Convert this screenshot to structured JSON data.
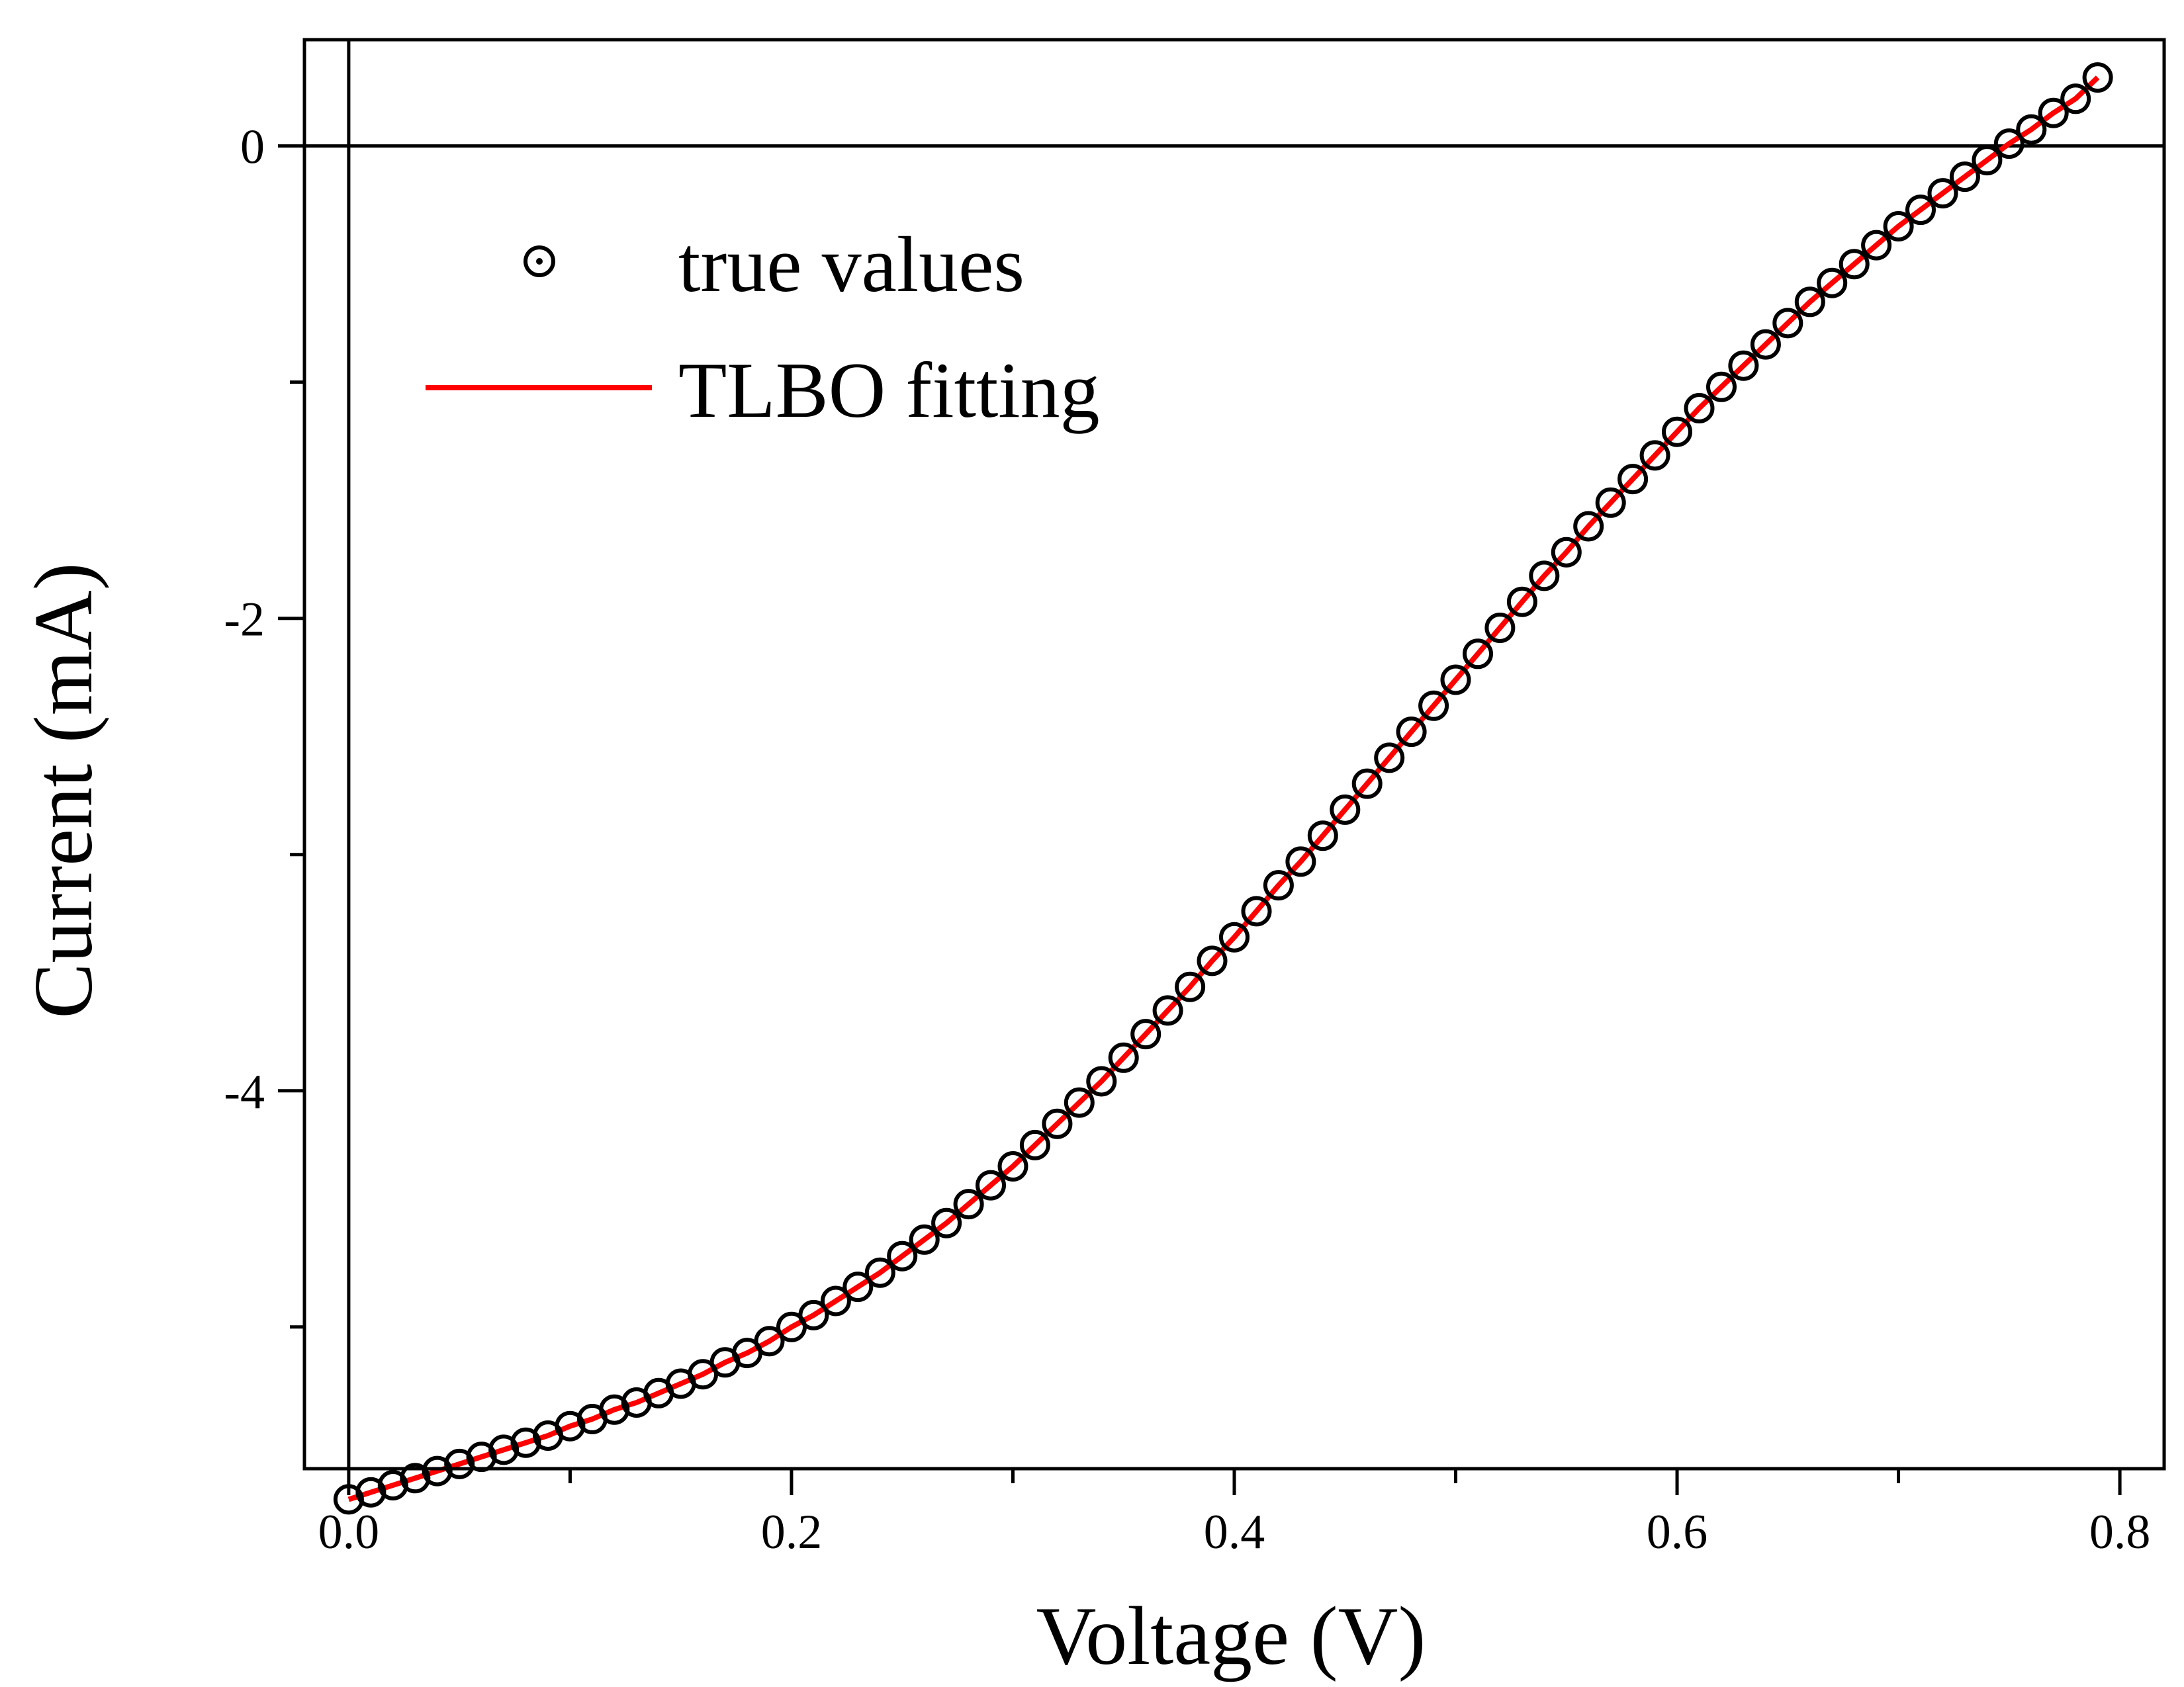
{
  "chart_data": {
    "type": "scatter",
    "title": "",
    "xlabel": "Voltage (V)",
    "ylabel": "Current (mA)",
    "xlim": [
      -0.02,
      0.82
    ],
    "ylim": [
      -5.6,
      0.45
    ],
    "x_ticks": [
      {
        "value": 0.0,
        "label": "0.0"
      },
      {
        "value": 0.2,
        "label": "0.2"
      },
      {
        "value": 0.4,
        "label": "0.4"
      },
      {
        "value": 0.6,
        "label": "0.6"
      },
      {
        "value": 0.8,
        "label": "0.8"
      }
    ],
    "x_minor_ticks": [
      0.1,
      0.3,
      0.5,
      0.7
    ],
    "y_ticks": [
      {
        "value": 0,
        "label": "0"
      },
      {
        "value": -2,
        "label": "-2"
      },
      {
        "value": -4,
        "label": "-4"
      }
    ],
    "y_minor_ticks": [
      -1,
      -3,
      -5
    ],
    "grid": false,
    "reference_lines": {
      "x": 0,
      "y": 0
    },
    "legend": {
      "position": "top-left",
      "entries": [
        {
          "label": "true values",
          "marker": "circle-dot",
          "color": "#000000"
        },
        {
          "label": "TLBO fitting",
          "marker": "line",
          "color": "#ff0000"
        }
      ]
    },
    "series": [
      {
        "name": "true values",
        "kind": "marker",
        "color": "#000000",
        "x": [
          0.0,
          0.01,
          0.02,
          0.03,
          0.04,
          0.05,
          0.06,
          0.07,
          0.08,
          0.09,
          0.1,
          0.11,
          0.12,
          0.13,
          0.14,
          0.15,
          0.16,
          0.17,
          0.18,
          0.19,
          0.2,
          0.21,
          0.22,
          0.23,
          0.24,
          0.25,
          0.26,
          0.27,
          0.28,
          0.29,
          0.3,
          0.31,
          0.32,
          0.33,
          0.34,
          0.35,
          0.36,
          0.37,
          0.38,
          0.39,
          0.4,
          0.41,
          0.42,
          0.43,
          0.44,
          0.45,
          0.46,
          0.47,
          0.48,
          0.49,
          0.5,
          0.51,
          0.52,
          0.53,
          0.54,
          0.55,
          0.56,
          0.57,
          0.58,
          0.59,
          0.6,
          0.61,
          0.62,
          0.63,
          0.64,
          0.65,
          0.66,
          0.67,
          0.68,
          0.69,
          0.7,
          0.71,
          0.72,
          0.73,
          0.74,
          0.75,
          0.76,
          0.77,
          0.78,
          0.79
        ],
        "y": [
          -5.73,
          -5.7,
          -5.67,
          -5.64,
          -5.61,
          -5.58,
          -5.55,
          -5.52,
          -5.49,
          -5.46,
          -5.42,
          -5.39,
          -5.35,
          -5.32,
          -5.28,
          -5.24,
          -5.2,
          -5.15,
          -5.11,
          -5.06,
          -5.0,
          -4.95,
          -4.89,
          -4.83,
          -4.77,
          -4.7,
          -4.63,
          -4.56,
          -4.48,
          -4.4,
          -4.32,
          -4.23,
          -4.14,
          -4.05,
          -3.96,
          -3.86,
          -3.76,
          -3.66,
          -3.56,
          -3.45,
          -3.35,
          -3.24,
          -3.13,
          -3.03,
          -2.92,
          -2.81,
          -2.7,
          -2.59,
          -2.48,
          -2.37,
          -2.26,
          -2.15,
          -2.04,
          -1.93,
          -1.82,
          -1.72,
          -1.61,
          -1.51,
          -1.41,
          -1.31,
          -1.21,
          -1.11,
          -1.02,
          -0.93,
          -0.84,
          -0.75,
          -0.66,
          -0.58,
          -0.5,
          -0.42,
          -0.34,
          -0.27,
          -0.2,
          -0.13,
          -0.06,
          0.01,
          0.07,
          0.14,
          0.2,
          0.29
        ]
      },
      {
        "name": "TLBO fitting",
        "kind": "line",
        "color": "#ff0000",
        "x": [
          0.0,
          0.01,
          0.02,
          0.03,
          0.04,
          0.05,
          0.06,
          0.07,
          0.08,
          0.09,
          0.1,
          0.11,
          0.12,
          0.13,
          0.14,
          0.15,
          0.16,
          0.17,
          0.18,
          0.19,
          0.2,
          0.21,
          0.22,
          0.23,
          0.24,
          0.25,
          0.26,
          0.27,
          0.28,
          0.29,
          0.3,
          0.31,
          0.32,
          0.33,
          0.34,
          0.35,
          0.36,
          0.37,
          0.38,
          0.39,
          0.4,
          0.41,
          0.42,
          0.43,
          0.44,
          0.45,
          0.46,
          0.47,
          0.48,
          0.49,
          0.5,
          0.51,
          0.52,
          0.53,
          0.54,
          0.55,
          0.56,
          0.57,
          0.58,
          0.59,
          0.6,
          0.61,
          0.62,
          0.63,
          0.64,
          0.65,
          0.66,
          0.67,
          0.68,
          0.69,
          0.7,
          0.71,
          0.72,
          0.73,
          0.74,
          0.75,
          0.76,
          0.77,
          0.78,
          0.79
        ],
        "y": [
          -5.73,
          -5.7,
          -5.67,
          -5.64,
          -5.61,
          -5.58,
          -5.55,
          -5.52,
          -5.49,
          -5.46,
          -5.42,
          -5.39,
          -5.35,
          -5.32,
          -5.28,
          -5.24,
          -5.2,
          -5.15,
          -5.11,
          -5.06,
          -5.0,
          -4.95,
          -4.89,
          -4.83,
          -4.77,
          -4.7,
          -4.63,
          -4.56,
          -4.48,
          -4.4,
          -4.32,
          -4.23,
          -4.14,
          -4.05,
          -3.96,
          -3.86,
          -3.76,
          -3.66,
          -3.56,
          -3.45,
          -3.35,
          -3.24,
          -3.13,
          -3.03,
          -2.92,
          -2.81,
          -2.7,
          -2.59,
          -2.48,
          -2.37,
          -2.26,
          -2.15,
          -2.04,
          -1.93,
          -1.82,
          -1.72,
          -1.61,
          -1.51,
          -1.41,
          -1.31,
          -1.21,
          -1.11,
          -1.02,
          -0.93,
          -0.84,
          -0.75,
          -0.66,
          -0.58,
          -0.5,
          -0.42,
          -0.34,
          -0.27,
          -0.2,
          -0.13,
          -0.06,
          0.01,
          0.07,
          0.14,
          0.2,
          0.29
        ]
      }
    ]
  }
}
